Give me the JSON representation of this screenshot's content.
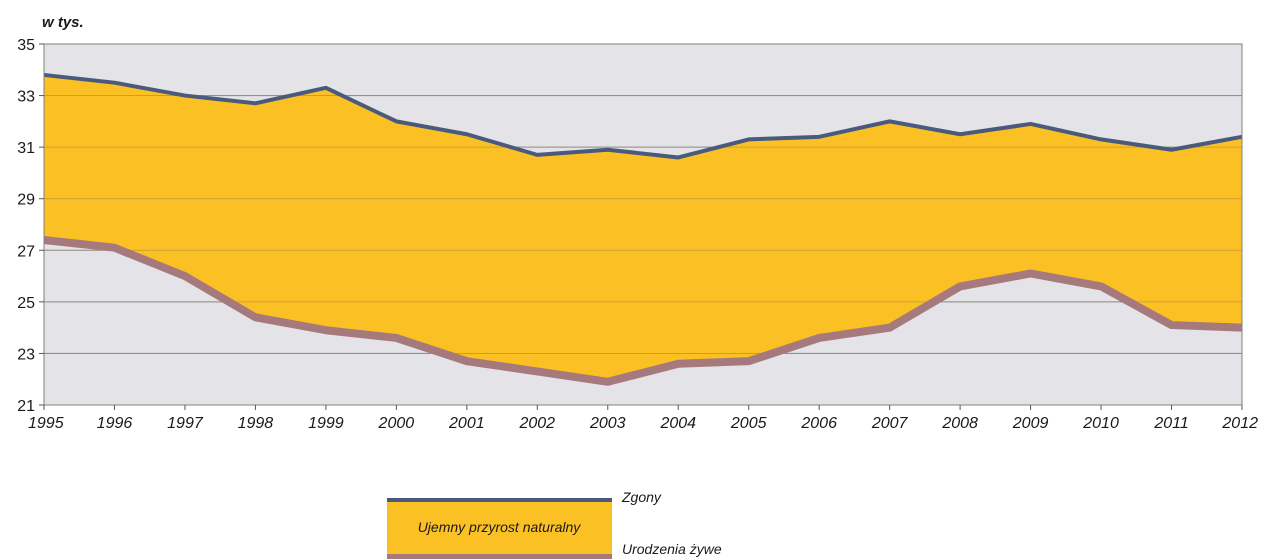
{
  "chart_data": {
    "type": "area",
    "ylabel": "w  tys.",
    "ylim": [
      21,
      35
    ],
    "yticks": [
      21,
      23,
      25,
      27,
      29,
      31,
      33,
      35
    ],
    "grid": true,
    "x": [
      "1995",
      "1996",
      "1997",
      "1998",
      "1999",
      "2000",
      "2001",
      "2002",
      "2003",
      "2004",
      "2005",
      "2006",
      "2007",
      "2008",
      "2009",
      "2010",
      "2011",
      "2012"
    ],
    "series": [
      {
        "name": "Zgony",
        "values": [
          33.8,
          33.5,
          33.0,
          32.7,
          33.3,
          32.0,
          31.5,
          30.7,
          30.9,
          30.6,
          31.3,
          31.4,
          32.0,
          31.5,
          31.9,
          31.3,
          30.9,
          31.4
        ],
        "color": "#4a5a7c"
      },
      {
        "name": "Urodzenia żywe",
        "values": [
          27.4,
          27.1,
          26.0,
          24.4,
          23.9,
          23.6,
          22.7,
          22.3,
          21.9,
          22.6,
          22.7,
          23.6,
          24.0,
          25.6,
          26.1,
          25.6,
          24.1,
          24.0
        ],
        "color": "#a67a7c"
      }
    ],
    "fill_label": "Ujemny przyrost naturalny",
    "fill_color": "#fbc124",
    "plot_background": "#e3e3e8",
    "legend_position": "bottom-center"
  }
}
